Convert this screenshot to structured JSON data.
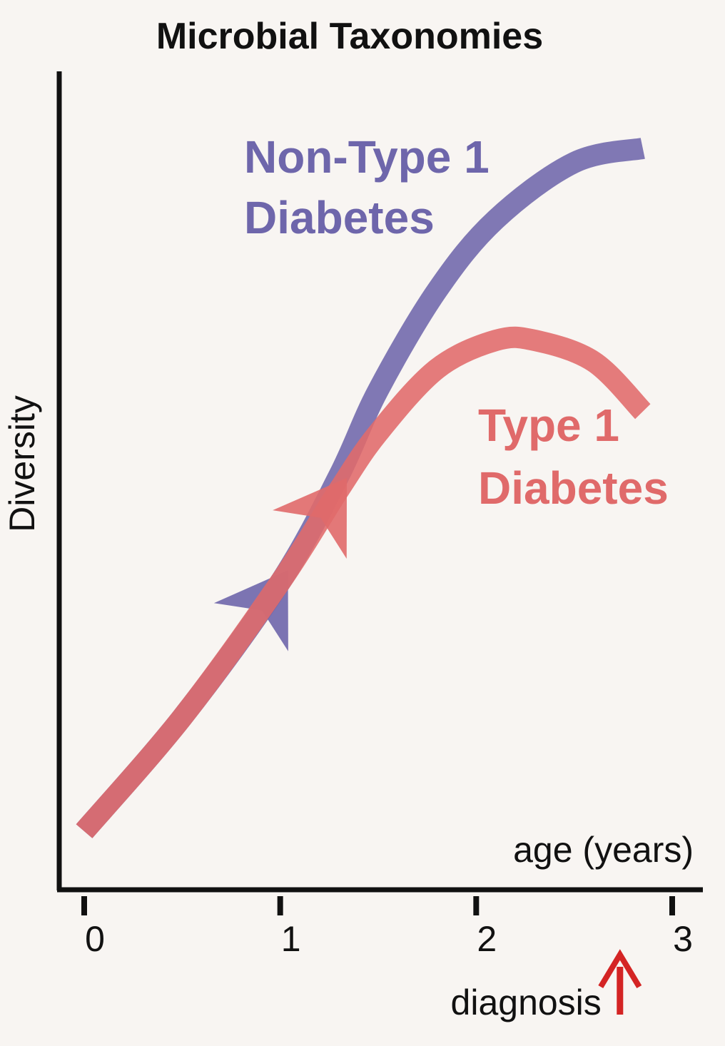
{
  "chart_data": {
    "type": "line",
    "title": "Microbial Taxonomies",
    "xlabel": "age (years)",
    "ylabel": "Diversity",
    "xlim": [
      0,
      3
    ],
    "ylim": [
      0,
      1
    ],
    "x_ticks": [
      "0",
      "1",
      "2",
      "3"
    ],
    "grid": false,
    "series": [
      {
        "name": "Non-Type 1 Diabetes",
        "label_lines": [
          "Non-Type 1",
          "Diabetes"
        ],
        "color": "#6e66ab",
        "x": [
          0.0,
          0.5,
          1.0,
          1.3,
          1.5,
          1.8,
          2.1,
          2.5,
          2.85
        ],
        "y": [
          0.0,
          0.16,
          0.35,
          0.5,
          0.62,
          0.76,
          0.86,
          0.94,
          0.96
        ]
      },
      {
        "name": "Type 1 Diabetes",
        "label_lines": [
          "Type 1",
          "Diabetes"
        ],
        "color": "#e06a6a",
        "x": [
          0.0,
          0.5,
          1.0,
          1.3,
          1.5,
          1.8,
          2.1,
          2.3,
          2.6,
          2.85
        ],
        "y": [
          0.0,
          0.16,
          0.35,
          0.48,
          0.56,
          0.65,
          0.69,
          0.69,
          0.66,
          0.59
        ]
      }
    ],
    "annotations": [
      {
        "text": "diagnosis",
        "x": 2.85,
        "color": "#d42424"
      }
    ]
  }
}
